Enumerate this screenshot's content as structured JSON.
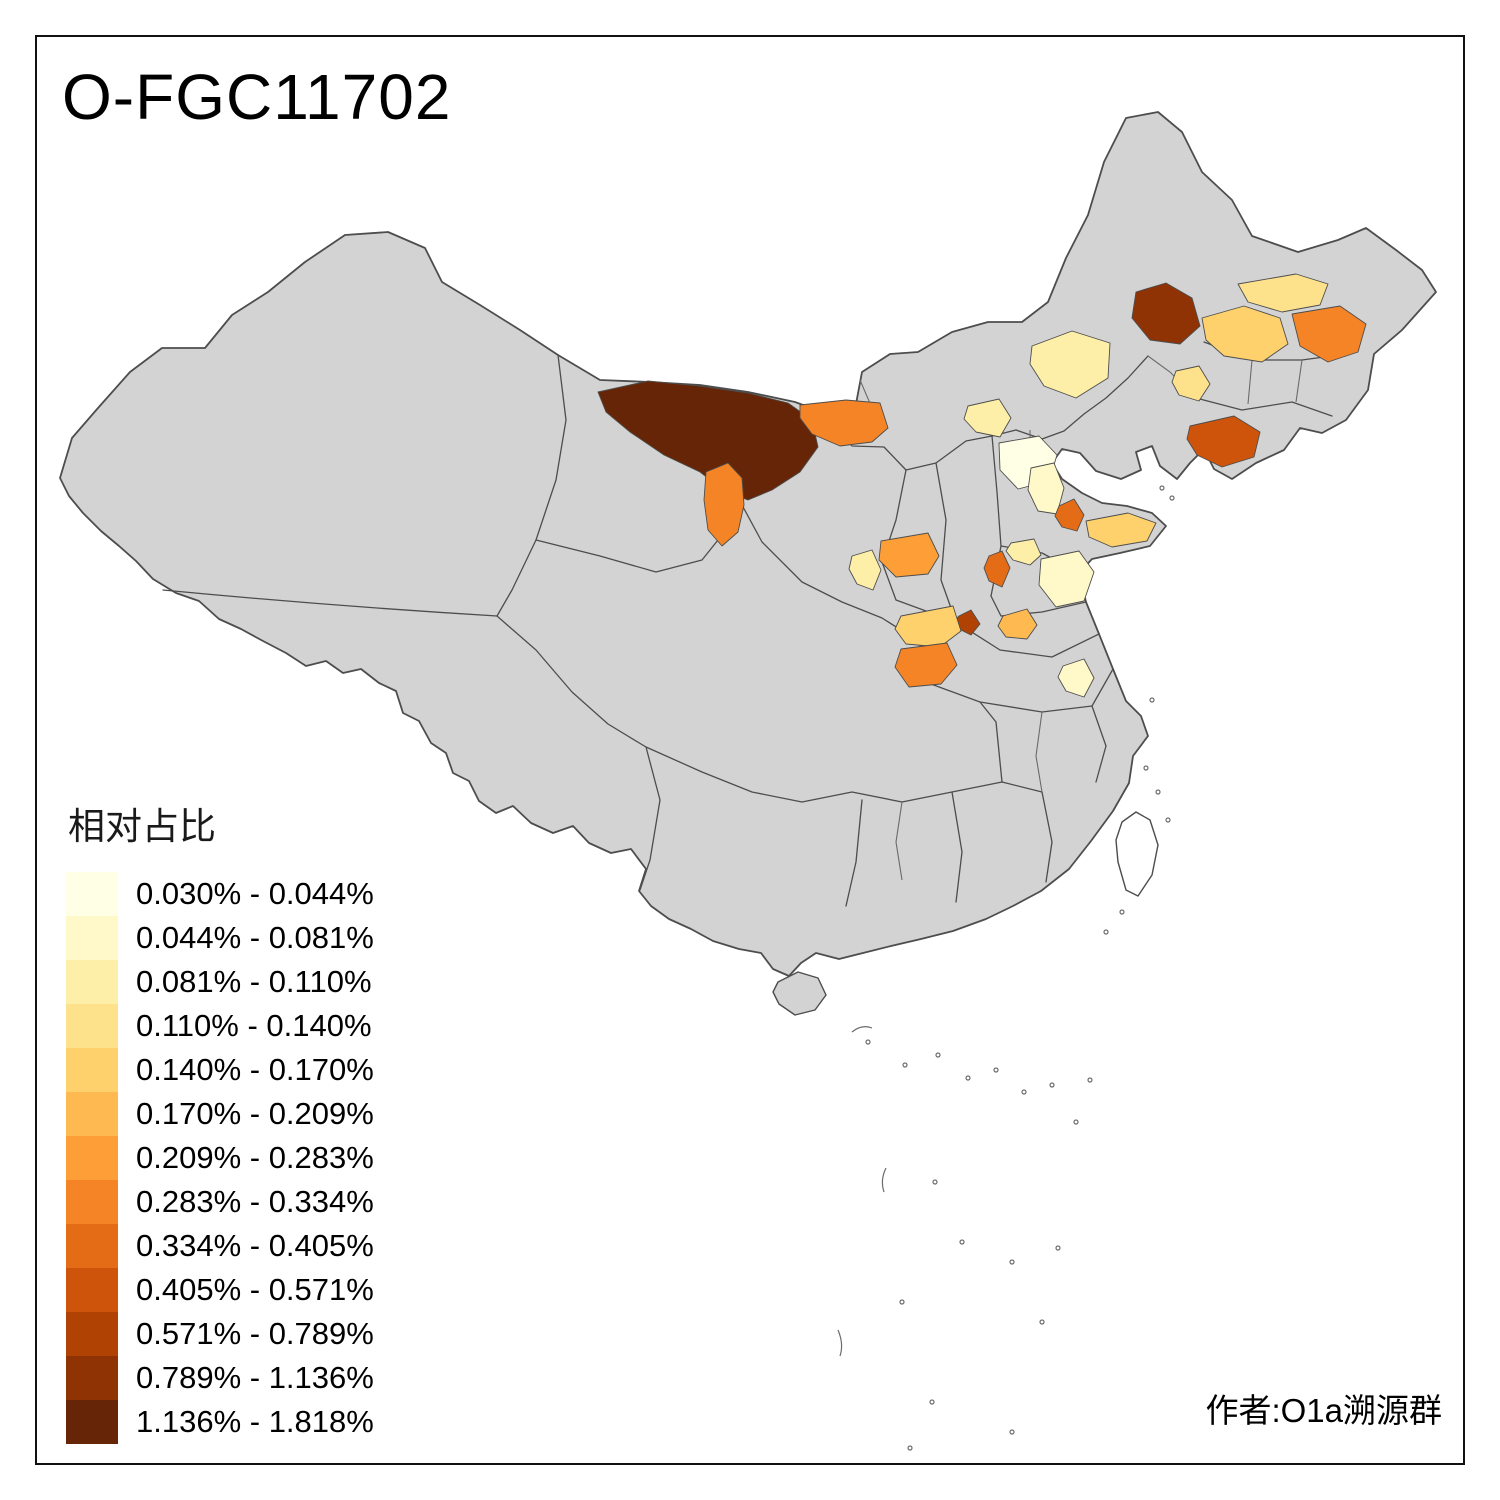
{
  "title": "O-FGC11702",
  "attribution": "作者:O1a溯源群",
  "legend": {
    "title": "相对占比",
    "items": [
      {
        "label": "0.030% - 0.044%",
        "color": "#FFFFE5"
      },
      {
        "label": "0.044% - 0.081%",
        "color": "#FFF9C9"
      },
      {
        "label": "0.081% - 0.110%",
        "color": "#FEEFA8"
      },
      {
        "label": "0.110% - 0.140%",
        "color": "#FEE28B"
      },
      {
        "label": "0.140% - 0.170%",
        "color": "#FED16C"
      },
      {
        "label": "0.170% - 0.209%",
        "color": "#FEB950"
      },
      {
        "label": "0.209% - 0.283%",
        "color": "#FE9E36"
      },
      {
        "label": "0.283% - 0.334%",
        "color": "#F58426"
      },
      {
        "label": "0.334% - 0.405%",
        "color": "#E56C16"
      },
      {
        "label": "0.405% - 0.571%",
        "color": "#CE540B"
      },
      {
        "label": "0.571% - 0.789%",
        "color": "#B04304"
      },
      {
        "label": "0.789% - 1.136%",
        "color": "#8F3204"
      },
      {
        "label": "1.136% - 1.818%",
        "color": "#662506"
      }
    ]
  },
  "map": {
    "land_fill": "#D3D3D3",
    "boundary_color": "#4D4D4D",
    "sea_fill": "#FFFFFF",
    "regions": [
      {
        "id": "region-1",
        "class_index": 13
      },
      {
        "id": "region-2",
        "class_index": 8
      },
      {
        "id": "region-3",
        "class_index": 8
      },
      {
        "id": "region-4",
        "class_index": 12
      },
      {
        "id": "region-5",
        "class_index": 5
      },
      {
        "id": "region-6",
        "class_index": 4
      },
      {
        "id": "region-7",
        "class_index": 8
      },
      {
        "id": "region-8",
        "class_index": 3
      },
      {
        "id": "region-9",
        "class_index": 4
      },
      {
        "id": "region-10",
        "class_index": 10
      },
      {
        "id": "region-11",
        "class_index": 3
      },
      {
        "id": "region-12",
        "class_index": 1
      },
      {
        "id": "region-13",
        "class_index": 2
      },
      {
        "id": "region-14",
        "class_index": 9
      },
      {
        "id": "region-15",
        "class_index": 5
      },
      {
        "id": "region-16",
        "class_index": 9
      },
      {
        "id": "region-17",
        "class_index": 7
      },
      {
        "id": "region-18",
        "class_index": 3
      },
      {
        "id": "region-19",
        "class_index": 2
      },
      {
        "id": "region-20",
        "class_index": 3
      },
      {
        "id": "region-21",
        "class_index": 11
      },
      {
        "id": "region-22",
        "class_index": 5
      },
      {
        "id": "region-23",
        "class_index": 8
      },
      {
        "id": "region-24",
        "class_index": 6
      },
      {
        "id": "region-25",
        "class_index": 2
      }
    ]
  }
}
